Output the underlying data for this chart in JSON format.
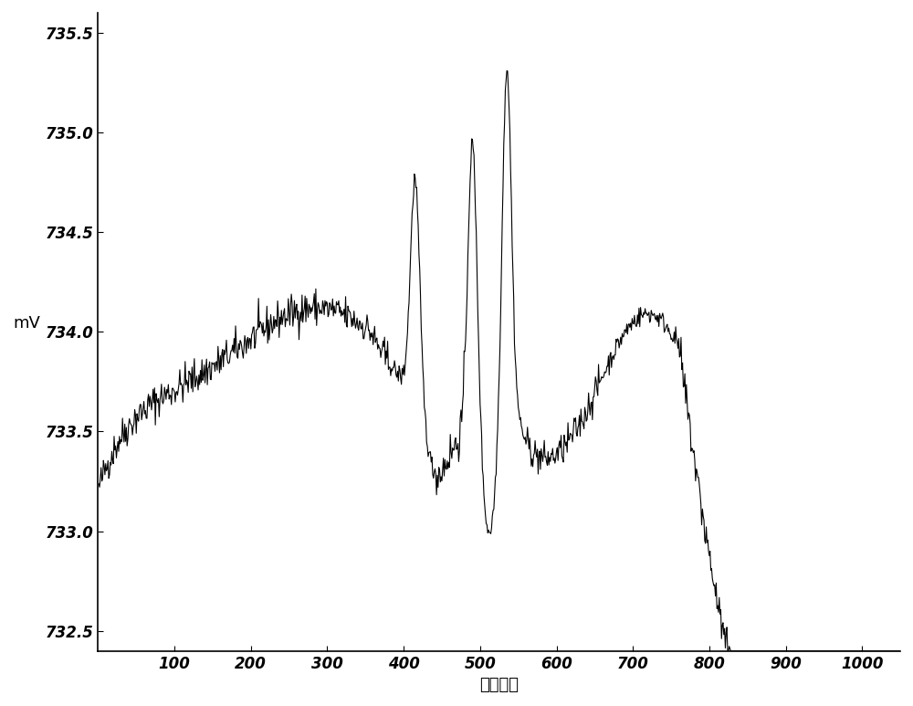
{
  "xlim": [
    0,
    1050
  ],
  "ylim": [
    732.4,
    735.6
  ],
  "xticks": [
    100,
    200,
    300,
    400,
    500,
    600,
    700,
    800,
    900,
    1000
  ],
  "yticks": [
    732.5,
    733.0,
    733.5,
    734.0,
    734.5,
    735.0,
    735.5
  ],
  "xlabel": "采样点数",
  "ylabel": "mV",
  "line_color": "#000000",
  "line_width": 0.8,
  "background_color": "#ffffff",
  "seed": 42
}
